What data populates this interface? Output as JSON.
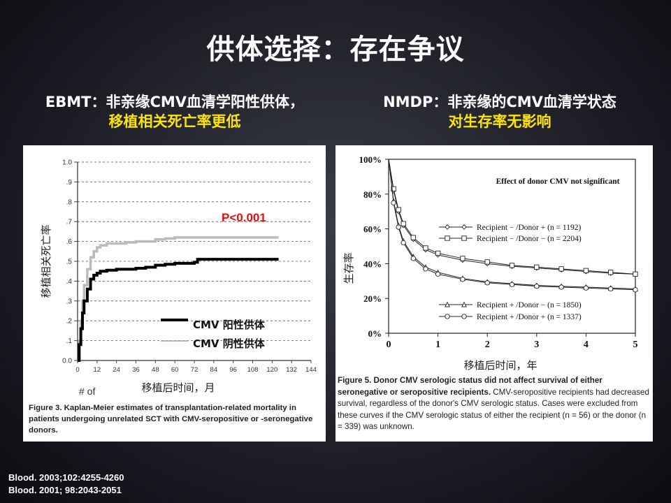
{
  "slide": {
    "title": "供体选择：存在争议"
  },
  "left": {
    "heading_line1": "EBMT：非亲缘CMV血清学阳性供体，",
    "heading_line2": "移植相关死亡率更低",
    "caption": "Figure 3. Kaplan-Meier estimates of transplantation-related mortality in patients undergoing unrelated SCT with CMV-seropositive or -seronegative donors.",
    "x_footer": "# of"
  },
  "right": {
    "heading_line1": "NMDP：非亲缘的CMV血清学状态",
    "heading_line2": "对生存率无影响",
    "caption_bold": "Figure 5. Donor CMV serologic status did not affect survival of either seronegative or seropositive recipients.",
    "caption_rest": " CMV-seropositive recipients had decreased survival, regardless of the donor's CMV serologic status. Cases were excluded from these curves if the CMV serologic status of either the recipient (n = 56) or the donor (n = 339) was unknown."
  },
  "references": [
    "Blood. 2003;102:4255-4260",
    "Blood. 2001; 98:2043-2051"
  ],
  "colors": {
    "highlight": "#ffe400",
    "pvalue": "#e31010"
  },
  "chart_data": [
    {
      "type": "line",
      "title": "",
      "xlabel": "移植后时间，月",
      "ylabel": "移植相关死亡率",
      "xlim": [
        0,
        144
      ],
      "ylim": [
        0,
        1.0
      ],
      "x_ticks": [
        0,
        12,
        24,
        36,
        48,
        60,
        72,
        84,
        96,
        108,
        120,
        132,
        144
      ],
      "y_ticks": [
        0.0,
        0.1,
        0.2,
        0.3,
        0.4,
        0.5,
        0.6,
        0.7,
        0.8,
        0.9,
        1.0
      ],
      "y_tick_labels": [
        "0.0",
        ".1",
        ".2",
        ".3",
        ".4",
        ".5",
        ".6",
        ".7",
        ".8",
        ".9",
        "1.0"
      ],
      "grid": "horizontal dashed",
      "annotation": "P<0.001",
      "legend_position": "bottom-right",
      "series": [
        {
          "name": "CMV 阳性供体",
          "color": "#000000",
          "x": [
            0,
            1,
            2,
            3,
            4,
            6,
            8,
            10,
            12,
            14,
            18,
            24,
            30,
            36,
            42,
            48,
            54,
            60,
            66,
            72,
            74,
            84,
            96,
            108,
            120,
            124
          ],
          "y": [
            0,
            0.08,
            0.16,
            0.24,
            0.3,
            0.36,
            0.41,
            0.43,
            0.44,
            0.45,
            0.455,
            0.46,
            0.46,
            0.465,
            0.47,
            0.48,
            0.485,
            0.49,
            0.49,
            0.495,
            0.51,
            0.51,
            0.51,
            0.51,
            0.51,
            0.51
          ]
        },
        {
          "name": "CMV 阴性供体",
          "color": "#bbbbbb",
          "x": [
            0,
            1,
            2,
            3,
            4,
            6,
            8,
            10,
            12,
            14,
            18,
            24,
            30,
            36,
            42,
            48,
            54,
            60,
            66,
            72,
            84,
            96,
            108,
            120,
            124
          ],
          "y": [
            0,
            0.1,
            0.2,
            0.3,
            0.38,
            0.46,
            0.52,
            0.55,
            0.57,
            0.58,
            0.59,
            0.59,
            0.595,
            0.6,
            0.6,
            0.61,
            0.615,
            0.62,
            0.62,
            0.62,
            0.62,
            0.62,
            0.62,
            0.62,
            0.62
          ]
        }
      ]
    },
    {
      "type": "line",
      "title": "Effect of donor CMV not significant",
      "xlabel": "移植后时间，年",
      "ylabel": "生存率",
      "xlim": [
        0,
        5
      ],
      "ylim": [
        0,
        100
      ],
      "x_ticks": [
        0,
        1,
        2,
        3,
        4,
        5
      ],
      "y_ticks": [
        0,
        20,
        40,
        60,
        80,
        100
      ],
      "y_tick_labels": [
        "0%",
        "20%",
        "40%",
        "60%",
        "80%",
        "100%"
      ],
      "grid": "none",
      "series": [
        {
          "name": "Recipient − /Donor + (n = 1192)",
          "marker": "diamond",
          "x": [
            0,
            0.1,
            0.2,
            0.3,
            0.5,
            0.75,
            1,
            1.5,
            2,
            2.5,
            3,
            3.5,
            4,
            4.5,
            5
          ],
          "y": [
            100,
            82,
            70,
            62,
            54,
            48,
            45,
            42,
            40,
            38.5,
            37.5,
            36.5,
            35.5,
            34.5,
            34
          ]
        },
        {
          "name": "Recipient − /Donor − (n = 2204)",
          "marker": "square",
          "x": [
            0,
            0.1,
            0.2,
            0.3,
            0.5,
            0.75,
            1,
            1.5,
            2,
            2.5,
            3,
            3.5,
            4,
            4.5,
            5
          ],
          "y": [
            100,
            83,
            71,
            63,
            55,
            49,
            46,
            43,
            41,
            39,
            38,
            37,
            36,
            35,
            34
          ]
        },
        {
          "name": "Recipient + /Donor − (n = 1850)",
          "marker": "triangle",
          "x": [
            0,
            0.1,
            0.2,
            0.3,
            0.5,
            0.75,
            1,
            1.5,
            2,
            2.5,
            3,
            3.5,
            4,
            4.5,
            5
          ],
          "y": [
            100,
            76,
            62,
            53,
            44,
            38,
            35,
            31.5,
            29.5,
            28.5,
            27.5,
            27,
            26.5,
            26,
            25.5
          ]
        },
        {
          "name": "Recipient + /Donor + (n = 1337)",
          "marker": "circle",
          "x": [
            0,
            0.1,
            0.2,
            0.3,
            0.5,
            0.75,
            1,
            1.5,
            2,
            2.5,
            3,
            3.5,
            4,
            4.5,
            5
          ],
          "y": [
            100,
            75,
            61,
            52,
            43,
            37,
            34,
            31,
            29,
            28,
            27,
            26.5,
            26,
            25.5,
            25
          ]
        }
      ]
    }
  ]
}
